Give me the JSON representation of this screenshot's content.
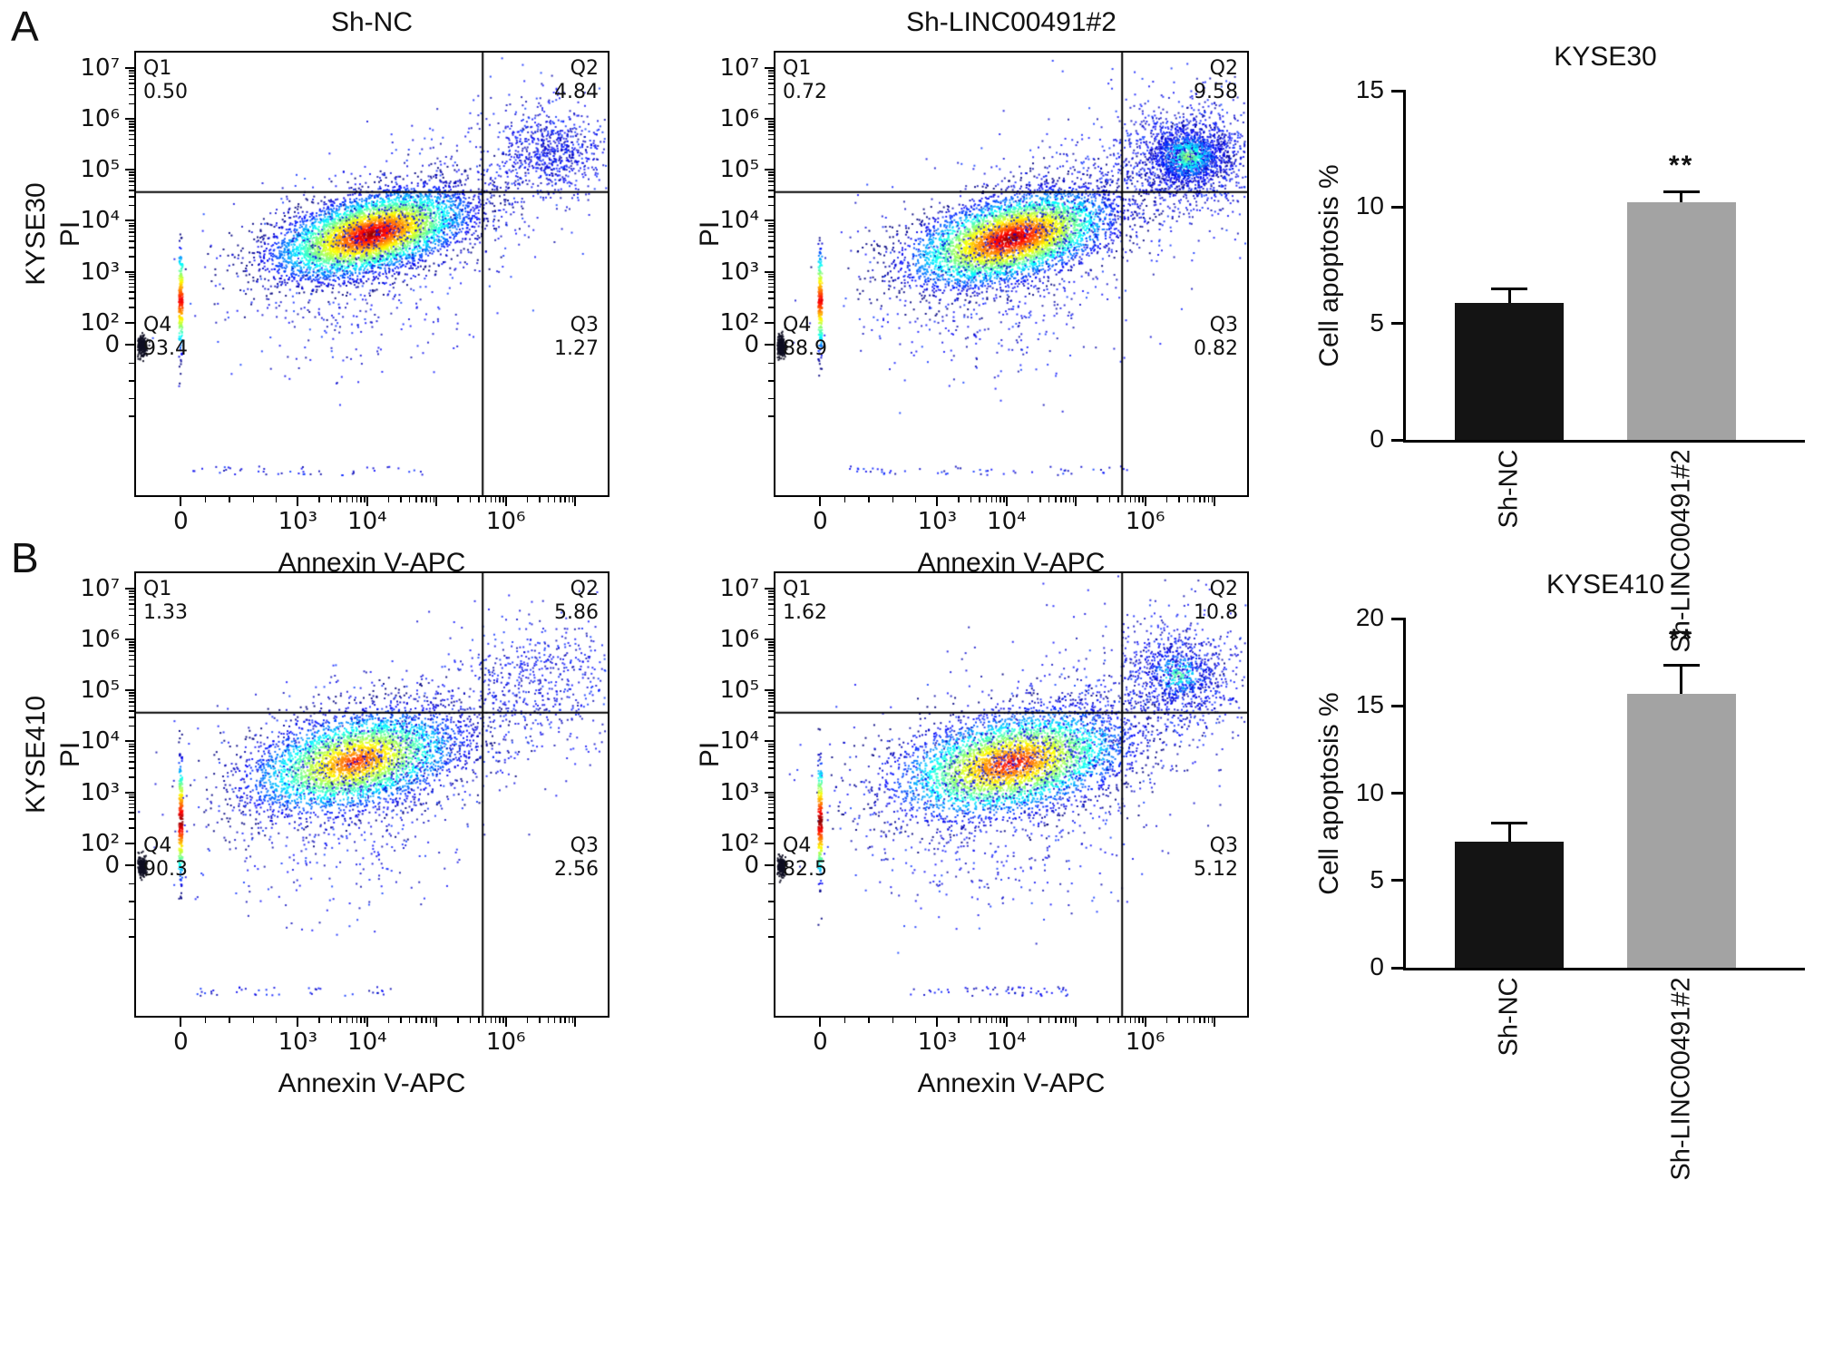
{
  "figure": {
    "background": "#ffffff",
    "panels": [
      {
        "letter": "A"
      },
      {
        "letter": "B"
      }
    ]
  },
  "chart_data": [
    {
      "type": "flow_scatter",
      "id": "kyse30-sh-nc",
      "title": "Sh-NC",
      "cell_line": "KYSE30",
      "y_axis_name": "PI",
      "xlabel": "Annexin V-APC",
      "x_ticks": [
        "0",
        "10³",
        "10⁴",
        "10⁶"
      ],
      "y_ticks": [
        "10⁷",
        "10⁶",
        "10⁵",
        "10⁴",
        "10³",
        "10²",
        "0"
      ],
      "quadrants": {
        "q1_label": "Q1",
        "q1_value": "0.50",
        "q2_label": "Q2",
        "q2_value": "4.84",
        "q3_label": "Q3",
        "q3_value": "1.27",
        "q4_label": "Q4",
        "q4_value": "93.4"
      },
      "seed": 11,
      "clusters": [
        {
          "kind": "gauss",
          "cx": 0.5,
          "cy": 0.41,
          "sx": 0.105,
          "sy": 0.042,
          "rot": -16,
          "n": 5200,
          "cmap": "jet",
          "coremax": 1.0
        },
        {
          "kind": "gauss",
          "cx": 0.5,
          "cy": 0.41,
          "sx": 0.155,
          "sy": 0.075,
          "rot": -16,
          "n": 650,
          "cmap": "blues"
        },
        {
          "kind": "gauss",
          "cx": 0.88,
          "cy": 0.225,
          "sx": 0.055,
          "sy": 0.05,
          "rot": 0,
          "n": 620,
          "cmap": "blues"
        },
        {
          "kind": "gauss",
          "cx": 0.88,
          "cy": 0.225,
          "sx": 0.1,
          "sy": 0.09,
          "rot": 0,
          "n": 220,
          "cmap": "blues"
        },
        {
          "kind": "gauss",
          "cx": 0.67,
          "cy": 0.33,
          "sx": 0.09,
          "sy": 0.07,
          "rot": -25,
          "n": 170,
          "cmap": "blues"
        },
        {
          "kind": "gauss",
          "cx": 0.46,
          "cy": 0.58,
          "sx": 0.13,
          "sy": 0.08,
          "rot": -10,
          "n": 210,
          "cmap": "blues"
        },
        {
          "kind": "vstreak",
          "x": 0.095,
          "y0": 0.42,
          "y1": 0.7,
          "n": 230,
          "coremax": 0.9
        },
        {
          "kind": "gauss",
          "cx": 0.012,
          "cy": 0.662,
          "sx": 0.005,
          "sy": 0.011,
          "rot": 0,
          "n": 230,
          "cmap": "dark"
        },
        {
          "kind": "hscatter",
          "y": 0.945,
          "x0": 0.12,
          "x1": 0.62,
          "n": 45
        }
      ]
    },
    {
      "type": "flow_scatter",
      "id": "kyse30-sh-linc00491-2",
      "title": "Sh-LINC00491#2",
      "cell_line": "",
      "y_axis_name": "PI",
      "xlabel": "Annexin V-APC",
      "x_ticks": [
        "0",
        "10³",
        "10⁴",
        "10⁶"
      ],
      "y_ticks": [
        "10⁷",
        "10⁶",
        "10⁵",
        "10⁴",
        "10³",
        "10²",
        "0"
      ],
      "quadrants": {
        "q1_label": "Q1",
        "q1_value": "0.72",
        "q2_label": "Q2",
        "q2_value": "9.58",
        "q3_label": "Q3",
        "q3_value": "0.82",
        "q4_label": "Q4",
        "q4_value": "88.9"
      },
      "seed": 22,
      "clusters": [
        {
          "kind": "gauss",
          "cx": 0.5,
          "cy": 0.42,
          "sx": 0.11,
          "sy": 0.045,
          "rot": -16,
          "n": 4800,
          "cmap": "jet",
          "coremax": 1.0
        },
        {
          "kind": "gauss",
          "cx": 0.5,
          "cy": 0.42,
          "sx": 0.16,
          "sy": 0.08,
          "rot": -16,
          "n": 700,
          "cmap": "blues"
        },
        {
          "kind": "gauss",
          "cx": 0.875,
          "cy": 0.235,
          "sx": 0.06,
          "sy": 0.05,
          "rot": 0,
          "n": 1500,
          "cmap": "blues"
        },
        {
          "kind": "gauss",
          "cx": 0.875,
          "cy": 0.235,
          "sx": 0.034,
          "sy": 0.028,
          "rot": 0,
          "n": 520,
          "cmap": "jet",
          "coremax": 0.55
        },
        {
          "kind": "gauss",
          "cx": 0.875,
          "cy": 0.235,
          "sx": 0.11,
          "sy": 0.1,
          "rot": 0,
          "n": 300,
          "cmap": "blues"
        },
        {
          "kind": "gauss",
          "cx": 0.68,
          "cy": 0.33,
          "sx": 0.09,
          "sy": 0.075,
          "rot": -25,
          "n": 260,
          "cmap": "blues"
        },
        {
          "kind": "gauss",
          "cx": 0.47,
          "cy": 0.6,
          "sx": 0.14,
          "sy": 0.085,
          "rot": -8,
          "n": 260,
          "cmap": "blues"
        },
        {
          "kind": "vstreak",
          "x": 0.095,
          "y0": 0.42,
          "y1": 0.7,
          "n": 230,
          "coremax": 0.9
        },
        {
          "kind": "gauss",
          "cx": 0.012,
          "cy": 0.662,
          "sx": 0.005,
          "sy": 0.011,
          "rot": 0,
          "n": 230,
          "cmap": "dark"
        },
        {
          "kind": "hscatter",
          "y": 0.945,
          "x0": 0.15,
          "x1": 0.75,
          "n": 55
        }
      ]
    },
    {
      "type": "bar",
      "id": "kyse30-apoptosis",
      "title": "KYSE30",
      "ylabel": "Cell apoptosis %",
      "categories": [
        "Sh-NC",
        "Sh-LINC00491#2"
      ],
      "values": [
        5.9,
        10.2
      ],
      "errors": [
        0.6,
        0.45
      ],
      "bar_colors": [
        "#141414",
        "#a3a3a3"
      ],
      "ylim": [
        0,
        15
      ],
      "yticks": [
        "0",
        "5",
        "10",
        "15"
      ],
      "significance": [
        "",
        "**"
      ]
    },
    {
      "type": "flow_scatter",
      "id": "kyse410-sh-nc",
      "title": "",
      "cell_line": "KYSE410",
      "y_axis_name": "PI",
      "xlabel": "Annexin V-APC",
      "x_ticks": [
        "0",
        "10³",
        "10⁴",
        "10⁶"
      ],
      "y_ticks": [
        "10⁷",
        "10⁶",
        "10⁵",
        "10⁴",
        "10³",
        "10²",
        "0"
      ],
      "quadrants": {
        "q1_label": "Q1",
        "q1_value": "1.33",
        "q2_label": "Q2",
        "q2_value": "5.86",
        "q3_label": "Q3",
        "q3_value": "2.56",
        "q4_label": "Q4",
        "q4_value": "90.3"
      },
      "seed": 33,
      "clusters": [
        {
          "kind": "gauss",
          "cx": 0.465,
          "cy": 0.425,
          "sx": 0.115,
          "sy": 0.052,
          "rot": -14,
          "n": 3600,
          "cmap": "jet",
          "coremax": 0.85
        },
        {
          "kind": "gauss",
          "cx": 0.465,
          "cy": 0.425,
          "sx": 0.17,
          "sy": 0.085,
          "rot": -14,
          "n": 800,
          "cmap": "blues"
        },
        {
          "kind": "gauss",
          "cx": 0.86,
          "cy": 0.235,
          "sx": 0.075,
          "sy": 0.065,
          "rot": 0,
          "n": 380,
          "cmap": "blues"
        },
        {
          "kind": "gauss",
          "cx": 0.86,
          "cy": 0.235,
          "sx": 0.12,
          "sy": 0.1,
          "rot": 0,
          "n": 160,
          "cmap": "blues"
        },
        {
          "kind": "gauss",
          "cx": 0.66,
          "cy": 0.34,
          "sx": 0.09,
          "sy": 0.075,
          "rot": -25,
          "n": 200,
          "cmap": "blues"
        },
        {
          "kind": "gauss",
          "cx": 0.44,
          "cy": 0.6,
          "sx": 0.14,
          "sy": 0.09,
          "rot": -8,
          "n": 240,
          "cmap": "blues"
        },
        {
          "kind": "vstreak",
          "x": 0.095,
          "y0": 0.4,
          "y1": 0.72,
          "n": 260,
          "coremax": 1.0
        },
        {
          "kind": "gauss",
          "cx": 0.012,
          "cy": 0.662,
          "sx": 0.005,
          "sy": 0.011,
          "rot": 0,
          "n": 230,
          "cmap": "dark"
        },
        {
          "kind": "hscatter",
          "y": 0.945,
          "x0": 0.12,
          "x1": 0.55,
          "n": 40
        }
      ]
    },
    {
      "type": "flow_scatter",
      "id": "kyse410-sh-linc00491-2",
      "title": "",
      "cell_line": "",
      "y_axis_name": "PI",
      "xlabel": "Annexin V-APC",
      "x_ticks": [
        "0",
        "10³",
        "10⁴",
        "10⁶"
      ],
      "y_ticks": [
        "10⁷",
        "10⁶",
        "10⁵",
        "10⁴",
        "10³",
        "10²",
        "0"
      ],
      "quadrants": {
        "q1_label": "Q1",
        "q1_value": "1.62",
        "q2_label": "Q2",
        "q2_value": "10.8",
        "q3_label": "Q3",
        "q3_value": "5.12",
        "q4_label": "Q4",
        "q4_value": "82.5"
      },
      "seed": 44,
      "clusters": [
        {
          "kind": "gauss",
          "cx": 0.5,
          "cy": 0.43,
          "sx": 0.125,
          "sy": 0.055,
          "rot": -13,
          "n": 3900,
          "cmap": "jet",
          "coremax": 0.9
        },
        {
          "kind": "gauss",
          "cx": 0.5,
          "cy": 0.43,
          "sx": 0.18,
          "sy": 0.09,
          "rot": -13,
          "n": 900,
          "cmap": "blues"
        },
        {
          "kind": "gauss",
          "cx": 0.855,
          "cy": 0.23,
          "sx": 0.06,
          "sy": 0.055,
          "rot": 0,
          "n": 700,
          "cmap": "blues"
        },
        {
          "kind": "gauss",
          "cx": 0.855,
          "cy": 0.23,
          "sx": 0.035,
          "sy": 0.03,
          "rot": 0,
          "n": 200,
          "cmap": "jet",
          "coremax": 0.5
        },
        {
          "kind": "gauss",
          "cx": 0.855,
          "cy": 0.23,
          "sx": 0.11,
          "sy": 0.1,
          "rot": 0,
          "n": 240,
          "cmap": "blues"
        },
        {
          "kind": "gauss",
          "cx": 0.68,
          "cy": 0.33,
          "sx": 0.095,
          "sy": 0.08,
          "rot": -25,
          "n": 240,
          "cmap": "blues"
        },
        {
          "kind": "gauss",
          "cx": 0.47,
          "cy": 0.61,
          "sx": 0.15,
          "sy": 0.09,
          "rot": -8,
          "n": 280,
          "cmap": "blues"
        },
        {
          "kind": "vstreak",
          "x": 0.095,
          "y0": 0.4,
          "y1": 0.72,
          "n": 260,
          "coremax": 1.0
        },
        {
          "kind": "gauss",
          "cx": 0.012,
          "cy": 0.662,
          "sx": 0.005,
          "sy": 0.011,
          "rot": 0,
          "n": 230,
          "cmap": "dark"
        },
        {
          "kind": "hscatter",
          "y": 0.945,
          "x0": 0.28,
          "x1": 0.62,
          "n": 55
        }
      ]
    },
    {
      "type": "bar",
      "id": "kyse410-apoptosis",
      "title": "KYSE410",
      "ylabel": "Cell apoptosis %",
      "categories": [
        "Sh-NC",
        "Sh-LINC00491#2"
      ],
      "values": [
        7.2,
        15.7
      ],
      "errors": [
        1.1,
        1.6
      ],
      "bar_colors": [
        "#141414",
        "#a3a3a3"
      ],
      "ylim": [
        0,
        20
      ],
      "yticks": [
        "0",
        "5",
        "10",
        "15",
        "20"
      ],
      "significance": [
        "",
        "**"
      ]
    }
  ]
}
